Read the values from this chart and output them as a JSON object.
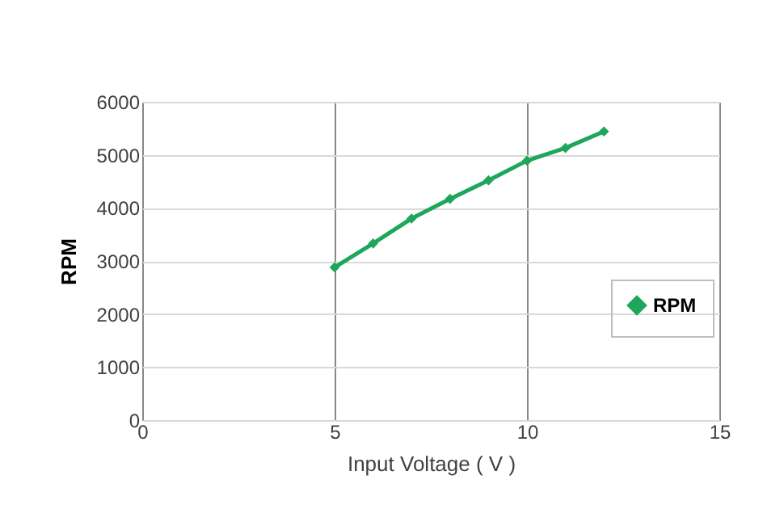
{
  "chart_data": {
    "type": "line",
    "xlabel": "Input Voltage ( V )",
    "ylabel": "RPM",
    "x": [
      5,
      6,
      7,
      8,
      9,
      10,
      11,
      12
    ],
    "series": [
      {
        "name": "RPM",
        "color": "#1ea65a",
        "values": [
          2880,
          3330,
          3800,
          4170,
          4520,
          4890,
          5130,
          5440
        ]
      }
    ],
    "xlim": [
      0,
      15
    ],
    "xticks": [
      0,
      5,
      10,
      15
    ],
    "ylim": [
      0,
      6000
    ],
    "yticks": [
      0,
      1000,
      2000,
      3000,
      4000,
      5000,
      6000
    ],
    "grid": true,
    "legend": "right",
    "marker": "diamond",
    "line_style": "solid"
  }
}
